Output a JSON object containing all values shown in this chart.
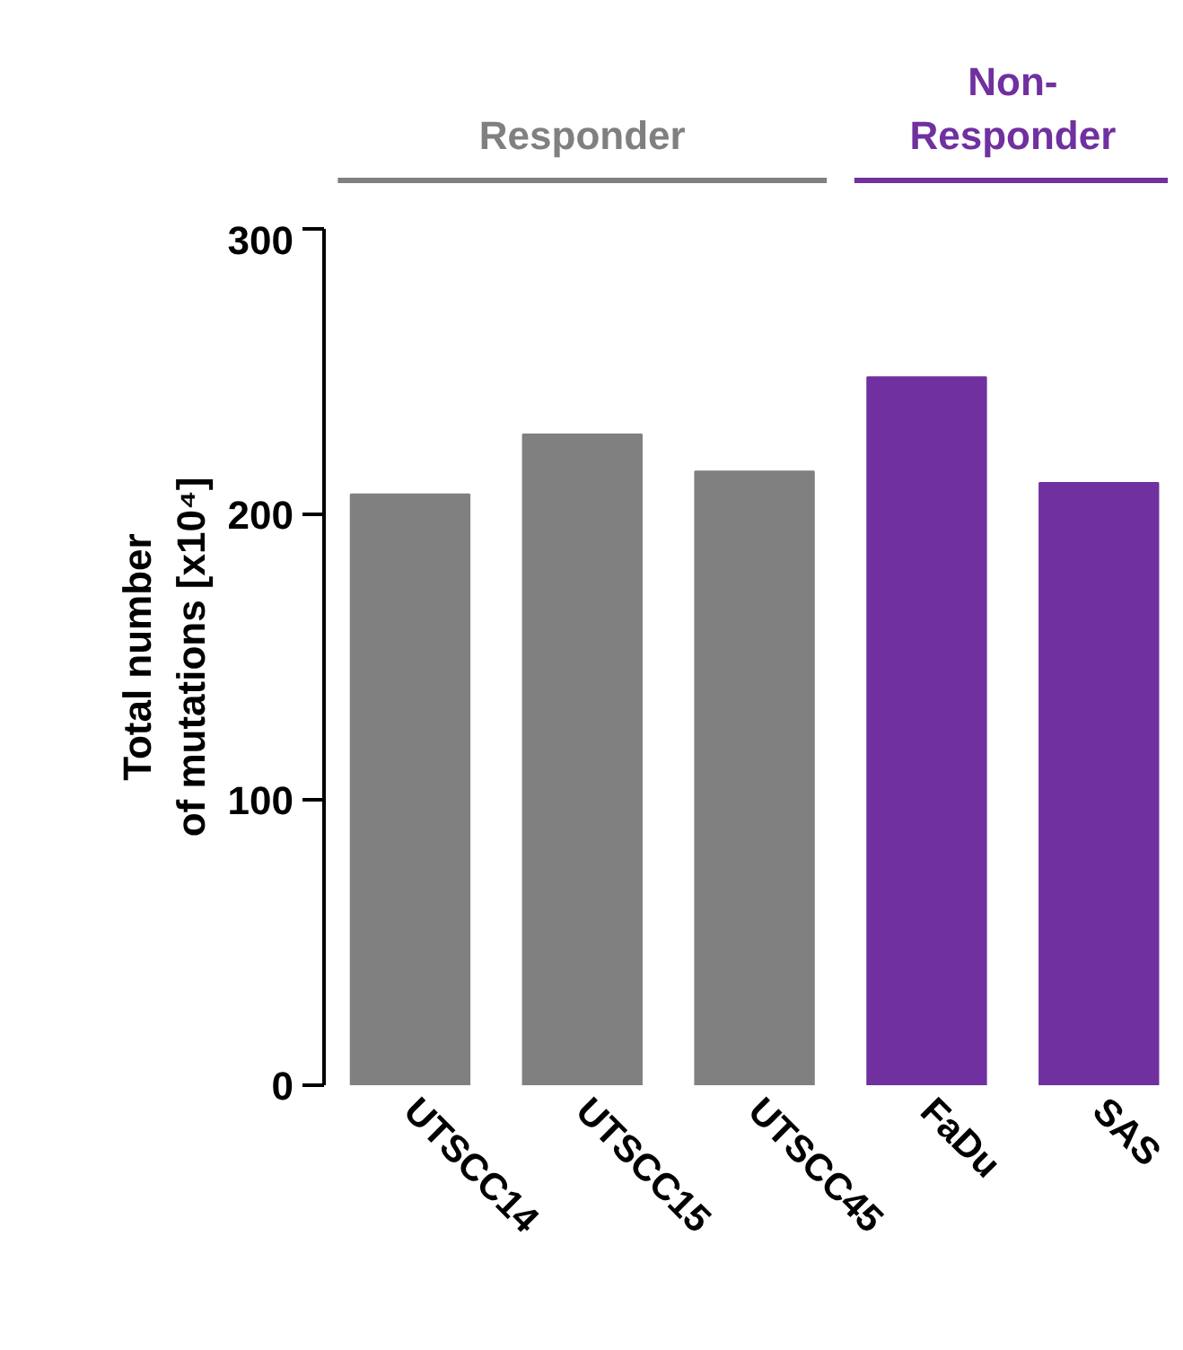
{
  "chart_data": {
    "type": "bar",
    "ylabel": "Total number\nof mutations [x10⁴]",
    "categories": [
      "UTSCC14",
      "UTSCC15",
      "UTSCC45",
      "FaDu",
      "SAS"
    ],
    "values": [
      207,
      228,
      215,
      248,
      211
    ],
    "colors": [
      "#808080",
      "#808080",
      "#808080",
      "#7030a0",
      "#7030a0"
    ],
    "ylim": [
      0,
      300
    ],
    "yticks": [
      0,
      100,
      200,
      300
    ],
    "annotations": [
      "Responder",
      "Non-\nResponder"
    ],
    "grid": false
  }
}
